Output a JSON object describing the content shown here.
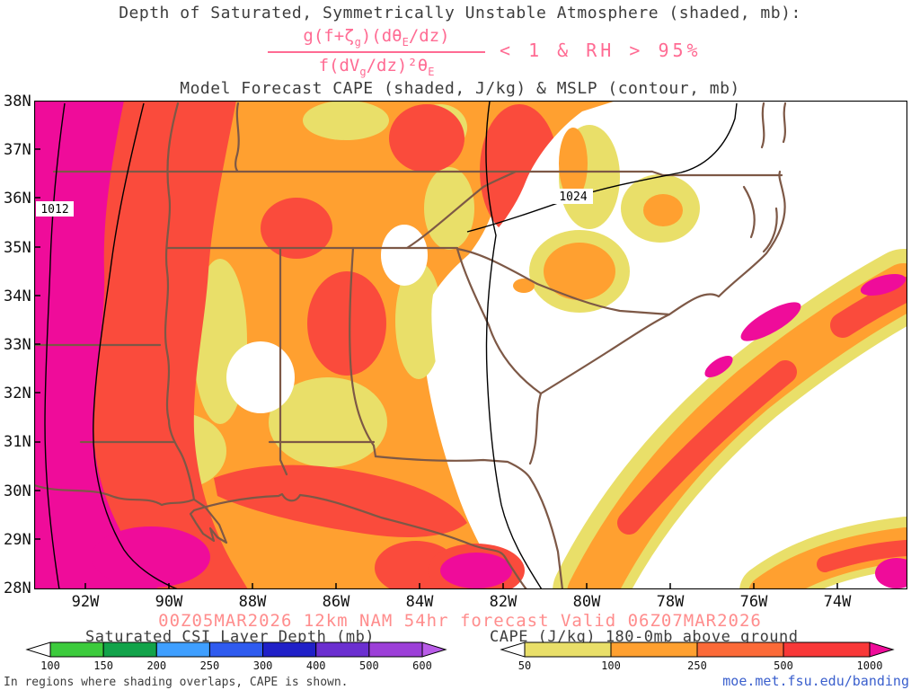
{
  "palette": {
    "title_text": "#3d3d3d",
    "formula_pink": "#ff6b93",
    "forecast_salmon": "#ff8d8d",
    "link_blue": "#3a5fcd",
    "axis_text": "#111111",
    "map_yellow": "#e9df69",
    "map_orange": "#ffa030",
    "map_red": "#fa4b3c",
    "map_magenta": "#ef0c9a",
    "border_brown": "#7d5846",
    "contour_black": "#000000"
  },
  "titles": {
    "line1": "Depth of Saturated, Symmetrically Unstable Atmosphere (shaded, mb):",
    "line2": "Model Forecast CAPE (shaded, J/kg) & MSLP (contour, mb)"
  },
  "formula": {
    "num_parts": [
      "g(f+ζ",
      "g",
      ")(dθ",
      "E",
      "/dz)"
    ],
    "den_parts": [
      "f(dV",
      "g",
      "/dz)²θ",
      "E"
    ],
    "condition": "< 1 & RH > 95%"
  },
  "map": {
    "lat_labels": [
      "38N",
      "37N",
      "36N",
      "35N",
      "34N",
      "33N",
      "32N",
      "31N",
      "30N",
      "29N",
      "28N"
    ],
    "lon_labels": [
      "92W",
      "90W",
      "88W",
      "86W",
      "84W",
      "82W",
      "80W",
      "78W",
      "76W",
      "74W"
    ],
    "contour_labels": [
      "1012",
      "1024"
    ]
  },
  "footer": {
    "forecast_info": "00Z05MAR2026 12km NAM 54hr forecast Valid 06Z07MAR2026",
    "note": "In regions where shading overlaps, CAPE is shown.",
    "link": "moe.met.fsu.edu/banding",
    "colorbar1": {
      "title": "Saturated CSI Layer Depth (mb)",
      "ticks": [
        "100",
        "150",
        "200",
        "250",
        "300",
        "400",
        "500",
        "600"
      ],
      "segment_colors": [
        "#3ccb3c",
        "#12a34a",
        "#3f9fff",
        "#2f5bef",
        "#2020c8",
        "#6b2fd0",
        "#9c3fd8"
      ],
      "left_arrow_color": "#ffffff",
      "right_arrow_color": "#b95ce8"
    },
    "colorbar2": {
      "title": "CAPE (J/kg) 180-0mb above ground",
      "ticks": [
        "50",
        "100",
        "250",
        "500",
        "1000"
      ],
      "segment_colors": [
        "#e9df69",
        "#ffa030",
        "#fb6a38",
        "#f83838"
      ],
      "left_arrow_color": "#ffffff",
      "right_arrow_color": "#ef0c9a"
    }
  }
}
